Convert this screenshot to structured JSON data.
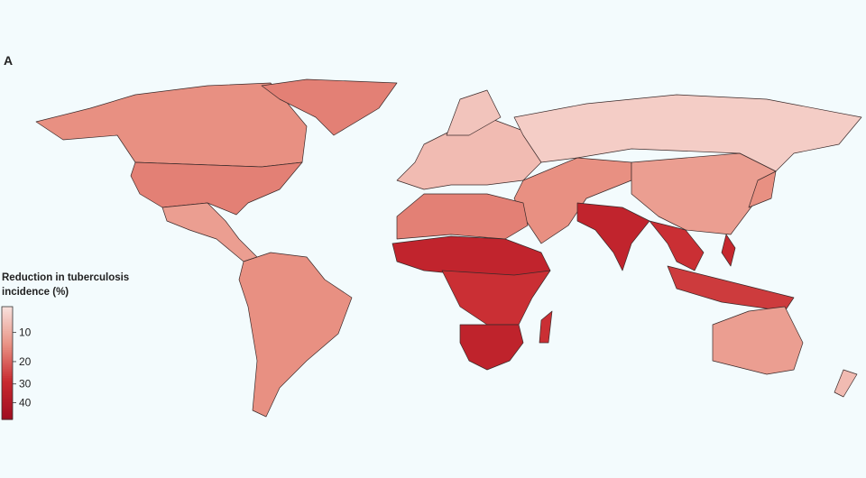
{
  "panel_label": "A",
  "legend": {
    "title": "Reduction in tuberculosis incidence (%)",
    "scale": "sqrt",
    "lim": [
      4,
      50
    ],
    "ticks": [
      10,
      20,
      30,
      40
    ],
    "colors": [
      "#f8e2de",
      "#e99385",
      "#c8292f",
      "#a00c20"
    ]
  },
  "regions": [
    14,
    16,
    16,
    12,
    14,
    8,
    7,
    6,
    14,
    12,
    16,
    32,
    28,
    33,
    28,
    32,
    28,
    26,
    14,
    12,
    8,
    30
  ]
}
